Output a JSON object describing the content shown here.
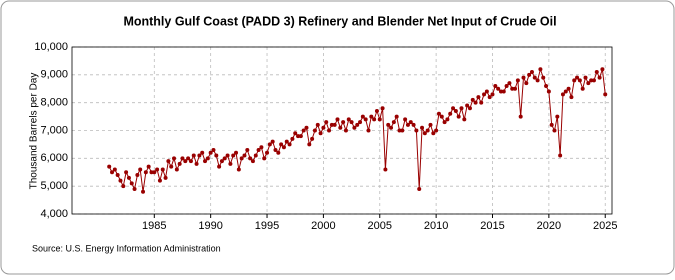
{
  "chart_data": {
    "type": "line",
    "title": "Monthly Gulf Coast (PADD 3) Refinery and Blender Net Input of Crude Oil",
    "y_label": "Thousand Barrels per Day",
    "source": "Source: U.S. Energy Information Administration",
    "x": [
      1981,
      1981.25,
      1981.5,
      1981.75,
      1982,
      1982.25,
      1982.5,
      1982.75,
      1983,
      1983.25,
      1983.5,
      1983.75,
      1984,
      1984.25,
      1984.5,
      1984.75,
      1985,
      1985.25,
      1985.5,
      1985.75,
      1986,
      1986.25,
      1986.5,
      1986.75,
      1987,
      1987.25,
      1987.5,
      1987.75,
      1988,
      1988.25,
      1988.5,
      1988.75,
      1989,
      1989.25,
      1989.5,
      1989.75,
      1990,
      1990.25,
      1990.5,
      1990.75,
      1991,
      1991.25,
      1991.5,
      1991.75,
      1992,
      1992.25,
      1992.5,
      1992.75,
      1993,
      1993.25,
      1993.5,
      1993.75,
      1994,
      1994.25,
      1994.5,
      1994.75,
      1995,
      1995.25,
      1995.5,
      1995.75,
      1996,
      1996.25,
      1996.5,
      1996.75,
      1997,
      1997.25,
      1997.5,
      1997.75,
      1998,
      1998.25,
      1998.5,
      1998.75,
      1999,
      1999.25,
      1999.5,
      1999.75,
      2000,
      2000.25,
      2000.5,
      2000.75,
      2001,
      2001.25,
      2001.5,
      2001.75,
      2002,
      2002.25,
      2002.5,
      2002.75,
      2003,
      2003.25,
      2003.5,
      2003.75,
      2004,
      2004.25,
      2004.5,
      2004.75,
      2005,
      2005.25,
      2005.5,
      2005.75,
      2006,
      2006.25,
      2006.5,
      2006.75,
      2007,
      2007.25,
      2007.5,
      2007.75,
      2008,
      2008.25,
      2008.5,
      2008.75,
      2009,
      2009.25,
      2009.5,
      2009.75,
      2010,
      2010.25,
      2010.5,
      2010.75,
      2011,
      2011.25,
      2011.5,
      2011.75,
      2012,
      2012.25,
      2012.5,
      2012.75,
      2013,
      2013.25,
      2013.5,
      2013.75,
      2014,
      2014.25,
      2014.5,
      2014.75,
      2015,
      2015.25,
      2015.5,
      2015.75,
      2016,
      2016.25,
      2016.5,
      2016.75,
      2017,
      2017.25,
      2017.5,
      2017.75,
      2018,
      2018.25,
      2018.5,
      2018.75,
      2019,
      2019.25,
      2019.5,
      2019.75,
      2020,
      2020.25,
      2020.5,
      2020.75,
      2021,
      2021.25,
      2021.5,
      2021.75,
      2022,
      2022.25,
      2022.5,
      2022.75,
      2023,
      2023.25,
      2023.5,
      2023.75,
      2024,
      2024.25,
      2024.5,
      2024.75,
      2025
    ],
    "series": [
      {
        "color": "#990000",
        "values": [
          5700,
          5500,
          5600,
          5400,
          5200,
          5000,
          5500,
          5300,
          5100,
          4900,
          5400,
          5600,
          4800,
          5500,
          5700,
          5500,
          5500,
          5600,
          5200,
          5600,
          5300,
          5900,
          5700,
          6000,
          5600,
          5800,
          6000,
          5900,
          6000,
          5900,
          6100,
          5800,
          6100,
          6200,
          5900,
          6000,
          6200,
          6300,
          6100,
          5700,
          5900,
          6000,
          6100,
          5800,
          6100,
          6200,
          5600,
          6000,
          6100,
          6300,
          6000,
          5900,
          6100,
          6300,
          6400,
          6000,
          6200,
          6500,
          6600,
          6300,
          6200,
          6500,
          6400,
          6600,
          6500,
          6700,
          6900,
          6800,
          6800,
          7000,
          7100,
          6500,
          6700,
          7000,
          7200,
          6900,
          7100,
          7300,
          7000,
          7200,
          7200,
          7400,
          7100,
          7300,
          7000,
          7400,
          7300,
          7100,
          7200,
          7300,
          7500,
          7400,
          7000,
          7500,
          7400,
          7700,
          7400,
          7800,
          5600,
          7200,
          7100,
          7300,
          7500,
          7000,
          7000,
          7400,
          7200,
          7300,
          7200,
          7000,
          4900,
          7100,
          6900,
          7000,
          7200,
          6900,
          7000,
          7600,
          7500,
          7300,
          7400,
          7600,
          7800,
          7700,
          7500,
          7800,
          7400,
          7900,
          7800,
          8100,
          8000,
          8200,
          8000,
          8300,
          8400,
          8200,
          8300,
          8600,
          8500,
          8400,
          8400,
          8600,
          8700,
          8500,
          8500,
          8800,
          7500,
          8900,
          8700,
          9000,
          9100,
          8900,
          8800,
          9200,
          8900,
          8600,
          8400,
          7200,
          7000,
          7500,
          6100,
          8300,
          8400,
          8500,
          8200,
          8800,
          8900,
          8800,
          8500,
          8900,
          8700,
          8800,
          8800,
          9100,
          8900,
          9200,
          8300
        ]
      }
    ],
    "xlim": [
      1977.7,
      2025.6
    ],
    "xticks": [
      1985,
      1990,
      1995,
      2000,
      2005,
      2010,
      2015,
      2020,
      2025
    ],
    "ylim": [
      4000,
      10000
    ],
    "yticks": [
      {
        "value": 4000,
        "label": "4,000"
      },
      {
        "value": 5000,
        "label": "5,000"
      },
      {
        "value": 6000,
        "label": "6,000"
      },
      {
        "value": 7000,
        "label": "7,000"
      },
      {
        "value": 8000,
        "label": "8,000"
      },
      {
        "value": 9000,
        "label": "9,000"
      },
      {
        "value": 10000,
        "label": "10,000"
      }
    ],
    "grid": true
  }
}
